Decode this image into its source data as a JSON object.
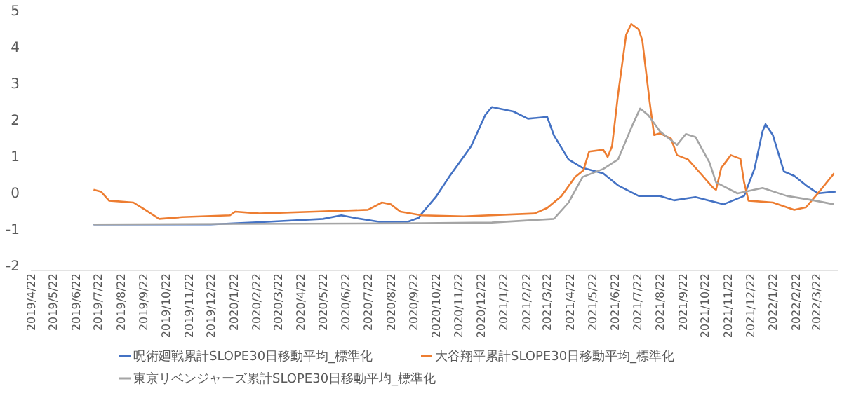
{
  "chart_data": {
    "type": "line",
    "legend": "bottom",
    "line_style": "solid",
    "marker": "none",
    "xlim": [
      "2019-04-22",
      "2022-04-20"
    ],
    "ylim": [
      -2,
      5
    ],
    "yticks": [
      -2,
      -1,
      0,
      1,
      2,
      3,
      4,
      5
    ],
    "xticks": [
      {
        "value": "2019-04-22",
        "label": "2019/4/22"
      },
      {
        "value": "2019-05-22",
        "label": "2019/5/22"
      },
      {
        "value": "2019-06-22",
        "label": "2019/6/22"
      },
      {
        "value": "2019-07-22",
        "label": "2019/7/22"
      },
      {
        "value": "2019-08-22",
        "label": "2019/8/22"
      },
      {
        "value": "2019-09-22",
        "label": "2019/9/22"
      },
      {
        "value": "2019-10-22",
        "label": "2019/10/22"
      },
      {
        "value": "2019-11-22",
        "label": "2019/11/22"
      },
      {
        "value": "2019-12-22",
        "label": "2019/12/22"
      },
      {
        "value": "2020-01-22",
        "label": "2020/1/22"
      },
      {
        "value": "2020-02-22",
        "label": "2020/2/22"
      },
      {
        "value": "2020-03-22",
        "label": "2020/3/22"
      },
      {
        "value": "2020-04-22",
        "label": "2020/4/22"
      },
      {
        "value": "2020-05-22",
        "label": "2020/5/22"
      },
      {
        "value": "2020-06-22",
        "label": "2020/6/22"
      },
      {
        "value": "2020-07-22",
        "label": "2020/7/22"
      },
      {
        "value": "2020-08-22",
        "label": "2020/8/22"
      },
      {
        "value": "2020-09-22",
        "label": "2020/9/22"
      },
      {
        "value": "2020-10-22",
        "label": "2020/10/22"
      },
      {
        "value": "2020-11-22",
        "label": "2020/11/22"
      },
      {
        "value": "2020-12-22",
        "label": "2020/12/22"
      },
      {
        "value": "2021-01-22",
        "label": "2021/1/22"
      },
      {
        "value": "2021-02-22",
        "label": "2021/2/22"
      },
      {
        "value": "2021-03-22",
        "label": "2021/3/22"
      },
      {
        "value": "2021-04-22",
        "label": "2021/4/22"
      },
      {
        "value": "2021-05-22",
        "label": "2021/5/22"
      },
      {
        "value": "2021-06-22",
        "label": "2021/6/22"
      },
      {
        "value": "2021-07-22",
        "label": "2021/7/22"
      },
      {
        "value": "2021-08-22",
        "label": "2021/8/22"
      },
      {
        "value": "2021-09-22",
        "label": "2021/9/22"
      },
      {
        "value": "2021-10-22",
        "label": "2021/10/22"
      },
      {
        "value": "2021-11-22",
        "label": "2021/11/22"
      },
      {
        "value": "2021-12-22",
        "label": "2021/12/22"
      },
      {
        "value": "2022-01-22",
        "label": "2022/1/22"
      },
      {
        "value": "2022-02-22",
        "label": "2022/2/22"
      },
      {
        "value": "2022-03-22",
        "label": "2022/3/22"
      }
    ],
    "series": [
      {
        "name": "呪術廻戦累計SLOPE30日移動平均_標準化",
        "color": "#4472c4",
        "x": [
          "2019-07-16",
          "2019-12-22",
          "2020-03-08",
          "2020-05-22",
          "2020-06-16",
          "2020-07-03",
          "2020-08-06",
          "2020-09-14",
          "2020-09-29",
          "2020-10-03",
          "2020-10-22",
          "2020-11-10",
          "2020-12-09",
          "2020-12-28",
          "2021-01-06",
          "2021-02-04",
          "2021-02-24",
          "2021-03-22",
          "2021-03-31",
          "2021-04-20",
          "2021-05-09",
          "2021-06-06",
          "2021-06-26",
          "2021-07-24",
          "2021-08-22",
          "2021-09-10",
          "2021-10-09",
          "2021-11-16",
          "2021-12-14",
          "2021-12-28",
          "2022-01-08",
          "2022-01-12",
          "2022-01-22",
          "2022-02-06",
          "2022-02-20",
          "2022-03-08",
          "2022-03-24",
          "2022-04-17"
        ],
        "values": [
          -0.85,
          -0.85,
          -0.78,
          -0.7,
          -0.6,
          -0.67,
          -0.78,
          -0.78,
          -0.67,
          -0.55,
          -0.1,
          0.48,
          1.3,
          2.15,
          2.37,
          2.25,
          2.05,
          2.1,
          1.6,
          0.93,
          0.7,
          0.55,
          0.22,
          -0.07,
          -0.07,
          -0.19,
          -0.1,
          -0.3,
          -0.07,
          0.67,
          1.7,
          1.9,
          1.6,
          0.6,
          0.48,
          0.22,
          0,
          0.05
        ]
      },
      {
        "name": "大谷翔平累計SLOPE30日移動平均_標準化",
        "color": "#ed7d31",
        "x": [
          "2019-07-16",
          "2019-07-26",
          "2019-08-06",
          "2019-09-08",
          "2019-09-24",
          "2019-10-13",
          "2019-11-13",
          "2020-01-17",
          "2020-01-24",
          "2020-02-26",
          "2020-05-11",
          "2020-07-22",
          "2020-08-10",
          "2020-08-22",
          "2020-09-04",
          "2020-10-03",
          "2020-11-29",
          "2021-03-05",
          "2021-03-22",
          "2021-04-10",
          "2021-04-29",
          "2021-05-10",
          "2021-05-18",
          "2021-06-06",
          "2021-06-12",
          "2021-06-18",
          "2021-06-26",
          "2021-07-07",
          "2021-07-14",
          "2021-07-24",
          "2021-07-29",
          "2021-08-08",
          "2021-08-14",
          "2021-08-22",
          "2021-09-06",
          "2021-09-14",
          "2021-09-29",
          "2021-10-18",
          "2021-11-02",
          "2021-11-06",
          "2021-11-13",
          "2021-11-26",
          "2021-12-09",
          "2021-12-14",
          "2021-12-20",
          "2022-01-22",
          "2022-02-20",
          "2022-03-08",
          "2022-03-28",
          "2022-04-15"
        ],
        "values": [
          0.1,
          0.05,
          -0.2,
          -0.25,
          -0.45,
          -0.7,
          -0.65,
          -0.6,
          -0.5,
          -0.55,
          -0.5,
          -0.45,
          -0.25,
          -0.3,
          -0.5,
          -0.6,
          -0.63,
          -0.55,
          -0.4,
          -0.08,
          0.45,
          0.63,
          1.15,
          1.2,
          1.0,
          1.3,
          2.7,
          4.35,
          4.65,
          4.5,
          4.2,
          2.5,
          1.6,
          1.65,
          1.5,
          1.05,
          0.93,
          0.5,
          0.15,
          0.1,
          0.7,
          1.05,
          0.95,
          0.3,
          -0.2,
          -0.25,
          -0.45,
          -0.38,
          0.1,
          0.55
        ]
      },
      {
        "name": "東京リベンジャーズ累計SLOPE30日移動平均_標準化",
        "color": "#a5a5a5",
        "x": [
          "2019-07-16",
          "2020-10-03",
          "2021-01-06",
          "2021-03-31",
          "2021-04-20",
          "2021-05-09",
          "2021-06-06",
          "2021-06-26",
          "2021-07-14",
          "2021-07-26",
          "2021-08-06",
          "2021-08-22",
          "2021-09-14",
          "2021-09-26",
          "2021-10-09",
          "2021-10-28",
          "2021-11-06",
          "2021-12-05",
          "2022-01-08",
          "2022-02-10",
          "2022-03-18",
          "2022-04-15"
        ],
        "values": [
          -0.85,
          -0.82,
          -0.8,
          -0.7,
          -0.25,
          0.45,
          0.67,
          0.93,
          1.8,
          2.33,
          2.15,
          1.7,
          1.33,
          1.63,
          1.55,
          0.85,
          0.3,
          0,
          0.15,
          -0.07,
          -0.19,
          -0.3
        ]
      }
    ]
  }
}
